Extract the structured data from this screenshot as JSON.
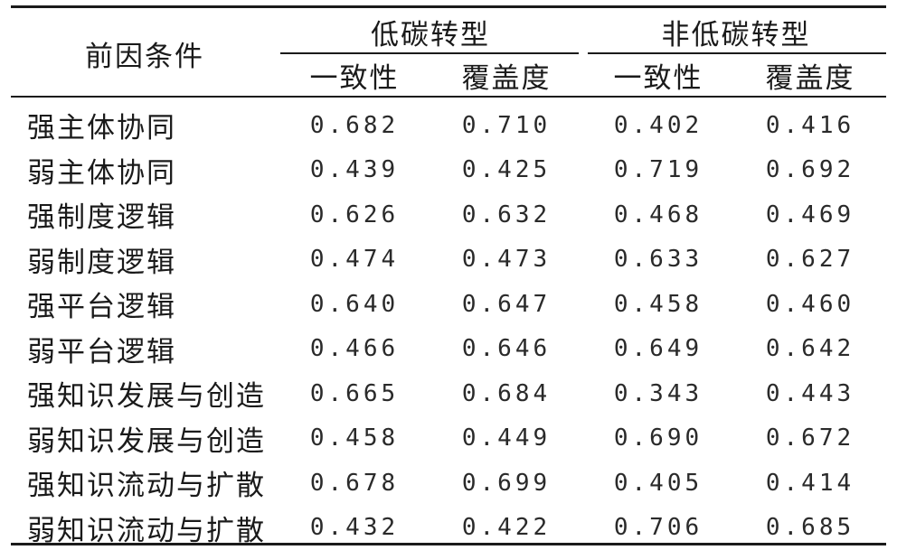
{
  "header": {
    "factor_label": "前因条件",
    "group_low_carbon": "低碳转型",
    "group_non_low_carbon": "非低碳转型",
    "consistency": "一致性",
    "coverage": "覆盖度"
  },
  "rows": [
    {
      "factor": "强主体协同",
      "values": [
        "0.682",
        "0.710",
        "0.402",
        "0.416"
      ]
    },
    {
      "factor": "弱主体协同",
      "values": [
        "0.439",
        "0.425",
        "0.719",
        "0.692"
      ]
    },
    {
      "factor": "强制度逻辑",
      "values": [
        "0.626",
        "0.632",
        "0.468",
        "0.469"
      ]
    },
    {
      "factor": "弱制度逻辑",
      "values": [
        "0.474",
        "0.473",
        "0.633",
        "0.627"
      ]
    },
    {
      "factor": "强平台逻辑",
      "values": [
        "0.640",
        "0.647",
        "0.458",
        "0.460"
      ]
    },
    {
      "factor": "弱平台逻辑",
      "values": [
        "0.466",
        "0.646",
        "0.649",
        "0.642"
      ]
    },
    {
      "factor": "强知识发展与创造",
      "values": [
        "0.665",
        "0.684",
        "0.343",
        "0.443"
      ]
    },
    {
      "factor": "弱知识发展与创造",
      "values": [
        "0.458",
        "0.449",
        "0.690",
        "0.672"
      ]
    },
    {
      "factor": "强知识流动与扩散",
      "values": [
        "0.678",
        "0.699",
        "0.405",
        "0.414"
      ]
    },
    {
      "factor": "弱知识流动与扩散",
      "values": [
        "0.432",
        "0.422",
        "0.706",
        "0.685"
      ]
    }
  ]
}
